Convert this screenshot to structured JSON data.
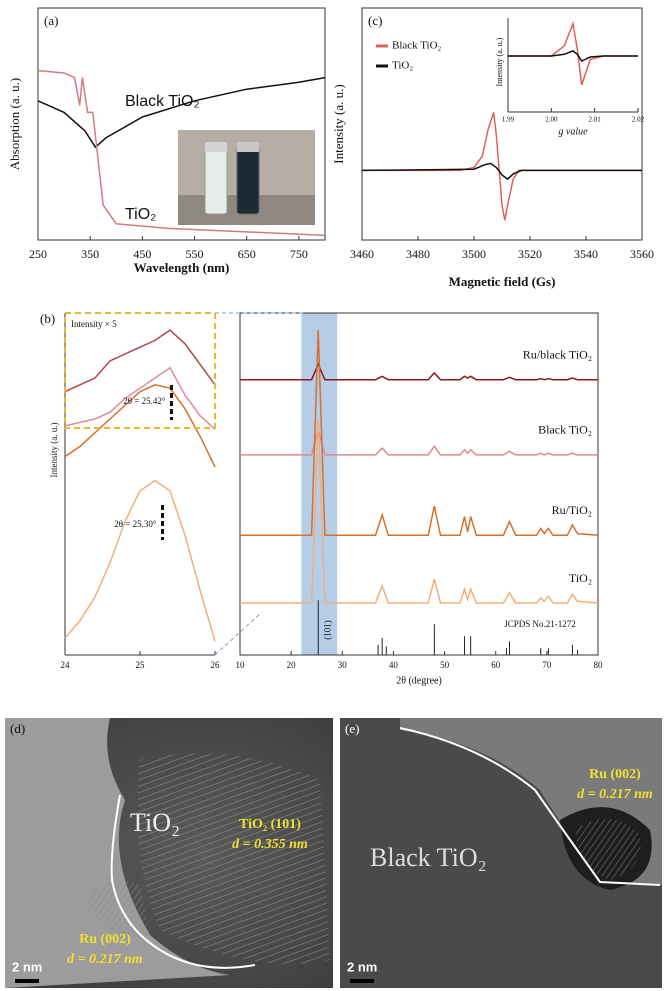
{
  "chart_data": [
    {
      "type": "line",
      "panel": "(a)",
      "xlabel": "Wavelength (nm)",
      "ylabel": "Absorption (a. u.)",
      "xlim": [
        250,
        800
      ],
      "xticks": [
        250,
        350,
        450,
        550,
        650,
        750
      ],
      "ylim": [
        0,
        1
      ],
      "series": [
        {
          "name": "Black TiO₂",
          "color": "#111111",
          "x": [
            250,
            300,
            340,
            360,
            380,
            450,
            550,
            650,
            750,
            800
          ],
          "values": [
            0.6,
            0.55,
            0.47,
            0.4,
            0.44,
            0.53,
            0.6,
            0.65,
            0.68,
            0.7
          ]
        },
        {
          "name": "TiO₂",
          "color": "#d27a80",
          "x": [
            250,
            300,
            320,
            330,
            335,
            345,
            355,
            365,
            375,
            400,
            500,
            600,
            700,
            800
          ],
          "values": [
            0.73,
            0.72,
            0.7,
            0.58,
            0.7,
            0.55,
            0.55,
            0.35,
            0.15,
            0.07,
            0.05,
            0.04,
            0.03,
            0.02
          ]
        }
      ]
    },
    {
      "type": "line",
      "panel": "(c)",
      "xlabel": "Magnetic field (Gs)",
      "ylabel": "Intensity (a. u.)",
      "xlim": [
        3460,
        3560
      ],
      "xticks": [
        3460,
        3480,
        3500,
        3520,
        3540,
        3560
      ],
      "ylim": [
        -1.2,
        2.8
      ],
      "legend": "upper left",
      "series": [
        {
          "name": "Black TiO₂",
          "color": "#e06060",
          "x": [
            3460,
            3495,
            3500,
            3503,
            3505,
            3507,
            3508,
            3509,
            3510,
            3511,
            3512,
            3514,
            3516,
            3560
          ],
          "values": [
            0,
            0,
            0.05,
            0.25,
            0.7,
            1.0,
            0.6,
            0,
            -0.6,
            -0.86,
            -0.6,
            -0.15,
            0,
            0
          ]
        },
        {
          "name": "TiO₂",
          "color": "#111111",
          "x": [
            3460,
            3500,
            3504,
            3506,
            3508,
            3510,
            3512,
            3514,
            3517,
            3560
          ],
          "values": [
            0,
            0.02,
            0.1,
            0.12,
            0.05,
            -0.08,
            -0.15,
            -0.06,
            0,
            0
          ]
        }
      ],
      "inset": {
        "xlabel": "g value",
        "ylabel": "Intensity (a. u.)",
        "xlim": [
          1.99,
          2.02
        ],
        "xticks": [
          1.99,
          {
            "value": 2,
            "label": "2.00"
          },
          2.01,
          2.02
        ],
        "ylim": [
          -1,
          1
        ],
        "series": [
          {
            "color": "#e06060",
            "x": [
              1.99,
              2,
              2.003,
              2.005,
              2.006,
              2.007,
              2.009,
              2.012,
              2.02
            ],
            "values": [
              0,
              0,
              0.3,
              0.95,
              0.2,
              -0.85,
              -0.1,
              0,
              0
            ]
          },
          {
            "color": "#111111",
            "x": [
              1.99,
              2,
              2.003,
              2.005,
              2.006,
              2.007,
              2.009,
              2.012,
              2.02
            ],
            "values": [
              0,
              0,
              0.05,
              0.15,
              0.05,
              -0.15,
              -0.03,
              0,
              0
            ]
          }
        ]
      }
    },
    {
      "type": "line",
      "panel": "(b)",
      "xlabel": "2θ (degree)",
      "xlim": [
        10,
        80
      ],
      "xticks": [
        10,
        20,
        30,
        40,
        50,
        60,
        70,
        80
      ],
      "ylim": [
        0,
        10
      ],
      "highlight": [
        22,
        29
      ],
      "x": [
        10,
        20,
        24,
        25.3,
        26.6,
        30,
        36.5,
        37.8,
        39,
        46.8,
        48,
        49.2,
        53,
        53.9,
        54.5,
        55.1,
        56.2,
        61.5,
        62.7,
        63.9,
        68,
        68.8,
        69.5,
        70.3,
        71.2,
        74,
        75,
        76,
        80
      ],
      "series": [
        {
          "name": "Ru/black TiO₂",
          "color": "#8b1a1a",
          "values": [
            8.05,
            8.05,
            8.05,
            8.5,
            8.05,
            8.05,
            8.05,
            8.15,
            8.05,
            8.05,
            8.25,
            8.05,
            8.05,
            8.15,
            8.1,
            8.15,
            8.05,
            8.05,
            8.12,
            8.05,
            8.05,
            8.08,
            8.05,
            8.08,
            8.05,
            8.05,
            8.1,
            8.05,
            8.05
          ]
        },
        {
          "name": "Black TiO₂",
          "color": "#d98a95",
          "values": [
            5.85,
            5.85,
            5.85,
            6.6,
            5.85,
            5.85,
            5.85,
            6.05,
            5.85,
            5.85,
            6.1,
            5.85,
            5.85,
            6.0,
            5.9,
            6.0,
            5.85,
            5.85,
            5.95,
            5.85,
            5.85,
            5.9,
            5.85,
            5.9,
            5.85,
            5.85,
            5.9,
            5.85,
            5.85
          ]
        },
        {
          "name": "Ru/TiO₂",
          "color": "#d9702a",
          "values": [
            3.5,
            3.5,
            3.5,
            9.5,
            3.5,
            3.5,
            3.5,
            4.1,
            3.5,
            3.5,
            4.35,
            3.5,
            3.5,
            4.05,
            3.6,
            4.05,
            3.5,
            3.5,
            3.9,
            3.5,
            3.5,
            3.7,
            3.55,
            3.7,
            3.5,
            3.5,
            3.8,
            3.55,
            3.5
          ]
        },
        {
          "name": "TiO₂",
          "color": "#f0b07a",
          "values": [
            1.52,
            1.52,
            1.52,
            6.9,
            1.52,
            1.52,
            1.52,
            2.02,
            1.52,
            1.52,
            2.22,
            1.52,
            1.52,
            1.92,
            1.62,
            1.92,
            1.52,
            1.52,
            1.82,
            1.52,
            1.52,
            1.67,
            1.57,
            1.72,
            1.52,
            1.52,
            1.77,
            1.57,
            1.52
          ]
        }
      ],
      "reference": {
        "label": "JCPDS No.21-1272",
        "annotation": "(101)",
        "x": [
          25.3,
          37.0,
          37.8,
          38.6,
          48.0,
          53.9,
          55.1,
          62.1,
          62.7,
          68.8,
          70.3,
          75.0,
          76.0
        ],
        "values": [
          1.6,
          0.3,
          0.5,
          0.25,
          0.9,
          0.55,
          0.55,
          0.2,
          0.4,
          0.2,
          0.2,
          0.3,
          0.15
        ]
      }
    },
    {
      "type": "line",
      "ylabel": "Intensity (a. u.)",
      "note": "Intensity × 5",
      "xlim": [
        24,
        26
      ],
      "xticks": [
        24,
        25,
        26
      ],
      "ylim": [
        0,
        10
      ],
      "x": [
        24,
        24.2,
        24.4,
        24.6,
        24.8,
        25,
        25.2,
        25.4,
        25.6,
        25.8,
        26
      ],
      "series": [
        {
          "color": "#b5454a",
          "values": [
            7.7,
            7.9,
            8.1,
            8.6,
            8.8,
            9.0,
            9.2,
            9.5,
            9.1,
            8.5,
            7.9
          ]
        },
        {
          "color": "#dc8f9a",
          "values": [
            6.7,
            6.8,
            6.9,
            7.1,
            7.5,
            7.8,
            8.1,
            8.4,
            7.6,
            7.0,
            6.6
          ]
        },
        {
          "color": "#d9702a",
          "values": [
            5.8,
            6.1,
            6.5,
            6.9,
            7.3,
            7.7,
            7.9,
            7.8,
            7.2,
            6.4,
            5.5
          ]
        },
        {
          "color": "#f0b07a",
          "values": [
            0.5,
            1.0,
            1.7,
            2.7,
            3.9,
            4.8,
            5.1,
            4.8,
            3.5,
            1.9,
            0.4
          ]
        }
      ],
      "markers": [
        {
          "x": 25.42,
          "label": "2θ = 25.42°"
        },
        {
          "x": 25.3,
          "label": "2θ = 25.30°"
        }
      ]
    }
  ],
  "micrographs": [
    {
      "panel": "(d)",
      "phase": "TiO₂",
      "lattice_a": "TiO₂ (101)",
      "spacing_a": "d = 0.355 nm",
      "lattice_b": "Ru (002)",
      "spacing_b": "d = 0.217 nm",
      "scale": "2 nm"
    },
    {
      "panel": "(e)",
      "phase": "Black TiO₂",
      "lattice_b": "Ru (002)",
      "spacing_b": "d = 0.217 nm",
      "scale": "2 nm"
    }
  ]
}
